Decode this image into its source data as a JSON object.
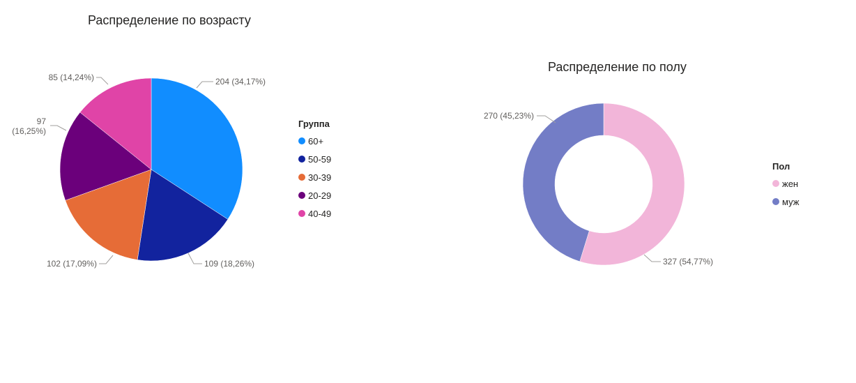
{
  "chart_data": [
    {
      "type": "pie",
      "title": "Распределение по возрасту",
      "legend_title": "Группа",
      "legend_position": "right",
      "categories": [
        "60+",
        "50-59",
        "30-39",
        "20-29",
        "40-49"
      ],
      "values": [
        204,
        109,
        102,
        97,
        85
      ],
      "data_labels": [
        "204 (34,17%)",
        "109 (18,26%)",
        "102 (17,09%)",
        "97 (16,25%)",
        "85 (14,24%)"
      ],
      "colors": [
        "#118dff",
        "#12239e",
        "#e66c37",
        "#6b007b",
        "#e044a7"
      ]
    },
    {
      "type": "pie",
      "subtype": "donut",
      "title": "Распределение по полу",
      "legend_title": "Пол",
      "legend_position": "right",
      "categories": [
        "жен",
        "муж"
      ],
      "values": [
        327,
        270
      ],
      "data_labels": [
        "327 (54,77%)",
        "270 (45,23%)"
      ],
      "colors": [
        "#f2b5d9",
        "#737dc6"
      ]
    }
  ]
}
